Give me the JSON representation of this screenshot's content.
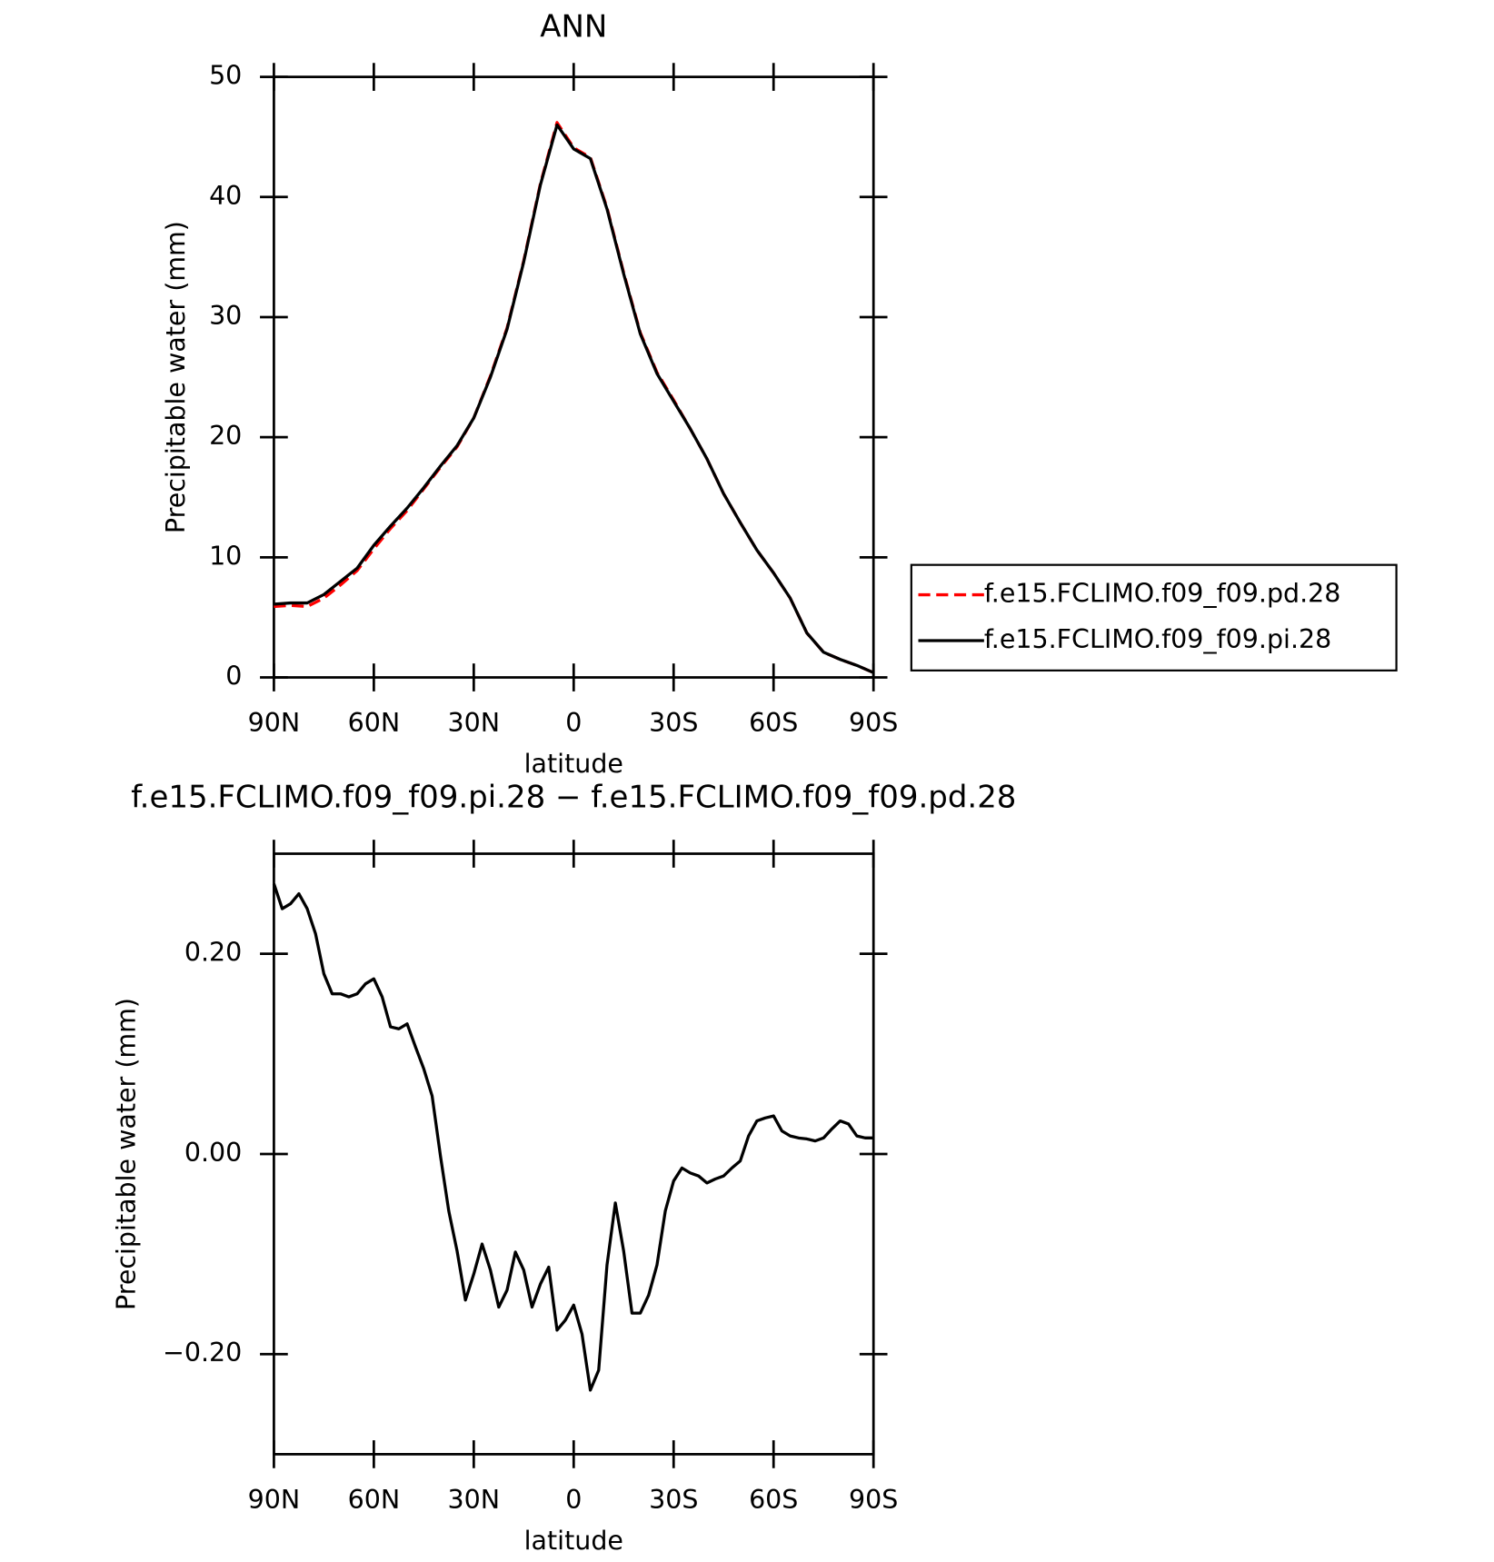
{
  "chart_data": [
    {
      "type": "line",
      "title": "ANN",
      "xlabel": "latitude",
      "ylabel": "Precipitable water (mm)",
      "x": [
        90,
        85,
        80,
        75,
        70,
        65,
        60,
        55,
        50,
        45,
        40,
        35,
        30,
        25,
        20,
        15,
        10,
        5,
        0,
        -5,
        -10,
        -15,
        -20,
        -25,
        -30,
        -35,
        -40,
        -45,
        -50,
        -55,
        -60,
        -65,
        -70,
        -75,
        -80,
        -85,
        -90
      ],
      "series": [
        {
          "name": "f.e15.FCLIMO.f09_f09.pd.28",
          "color": "#ff0000",
          "dashed": true,
          "values": [
            5.9,
            6.0,
            5.9,
            6.6,
            7.7,
            8.9,
            10.7,
            12.4,
            13.9,
            15.7,
            17.5,
            19.2,
            21.6,
            25.1,
            29.1,
            34.7,
            41.1,
            46.2,
            44.1,
            43.3,
            39.1,
            33.7,
            28.7,
            25.4,
            23.1,
            20.7,
            18.2,
            15.3,
            12.9,
            10.6,
            8.7,
            6.6,
            3.7,
            2.1,
            1.5,
            1.0,
            0.4
          ]
        },
        {
          "name": "f.e15.FCLIMO.f09_f09.pi.28",
          "color": "#000000",
          "dashed": false,
          "values": [
            6.1,
            6.2,
            6.2,
            6.9,
            8.0,
            9.1,
            11.0,
            12.6,
            14.1,
            15.8,
            17.6,
            19.3,
            21.6,
            25.0,
            29.0,
            34.6,
            41.0,
            46.0,
            44.0,
            43.2,
            39.0,
            33.6,
            28.6,
            25.3,
            23.0,
            20.7,
            18.2,
            15.3,
            12.9,
            10.6,
            8.7,
            6.6,
            3.7,
            2.1,
            1.5,
            1.0,
            0.4
          ]
        }
      ],
      "xlim": [
        90,
        -90
      ],
      "xticks": [
        {
          "value": 90,
          "label": "90N"
        },
        {
          "value": 60,
          "label": "60N"
        },
        {
          "value": 30,
          "label": "30N"
        },
        0,
        {
          "value": -30,
          "label": "30S"
        },
        {
          "value": -60,
          "label": "60S"
        },
        {
          "value": -90,
          "label": "90S"
        }
      ],
      "ylim": [
        0,
        50
      ],
      "yticks": [
        0,
        10,
        20,
        30,
        40,
        50
      ],
      "legend": "right"
    },
    {
      "type": "line",
      "title": "f.e15.FCLIMO.f09_f09.pi.28 − f.e15.FCLIMO.f09_f09.pd.28",
      "xlabel": "latitude",
      "ylabel": "Precipitable water (mm)",
      "x": [
        90,
        87.5,
        85,
        82.5,
        80,
        77.5,
        75,
        72.5,
        70,
        67.5,
        65,
        62.5,
        60,
        57.5,
        55,
        52.5,
        50,
        47.5,
        45,
        42.5,
        40,
        37.5,
        35,
        32.5,
        30,
        27.5,
        25,
        22.5,
        20,
        17.5,
        15,
        12.5,
        10,
        7.5,
        5,
        2.5,
        0,
        -2.5,
        -5,
        -7.5,
        -10,
        -12.5,
        -15,
        -17.5,
        -20,
        -22.5,
        -25,
        -27.5,
        -30,
        -32.5,
        -35,
        -37.5,
        -40,
        -42.5,
        -45,
        -47.5,
        -50,
        -52.5,
        -55,
        -57.5,
        -60,
        -62.5,
        -65,
        -67.5,
        -70,
        -72.5,
        -75,
        -77.5,
        -80,
        -82.5,
        -85,
        -87.5,
        -90
      ],
      "series": [
        {
          "color": "#000000",
          "dashed": false,
          "values": [
            0.27,
            0.245,
            0.25,
            0.26,
            0.245,
            0.22,
            0.18,
            0.16,
            0.16,
            0.157,
            0.16,
            0.17,
            0.175,
            0.157,
            0.127,
            0.125,
            0.13,
            0.107,
            0.085,
            0.058,
            -0.002,
            -0.057,
            -0.097,
            -0.146,
            -0.12,
            -0.09,
            -0.116,
            -0.153,
            -0.136,
            -0.098,
            -0.116,
            -0.153,
            -0.13,
            -0.113,
            -0.176,
            -0.166,
            -0.151,
            -0.18,
            -0.236,
            -0.216,
            -0.111,
            -0.049,
            -0.097,
            -0.159,
            -0.159,
            -0.141,
            -0.111,
            -0.057,
            -0.027,
            -0.014,
            -0.019,
            -0.022,
            -0.029,
            -0.025,
            -0.022,
            -0.014,
            -0.007,
            0.018,
            0.033,
            0.036,
            0.038,
            0.023,
            0.018,
            0.016,
            0.015,
            0.013,
            0.016,
            0.025,
            0.033,
            0.03,
            0.018,
            0.016,
            0.016
          ]
        }
      ],
      "xlim": [
        90,
        -90
      ],
      "xticks": [
        {
          "value": 90,
          "label": "90N"
        },
        {
          "value": 60,
          "label": "60N"
        },
        {
          "value": 30,
          "label": "30N"
        },
        0,
        {
          "value": -30,
          "label": "30S"
        },
        {
          "value": -60,
          "label": "60S"
        },
        {
          "value": -90,
          "label": "90S"
        }
      ],
      "ylim": [
        -0.3,
        0.3
      ],
      "yticks": [
        {
          "value": -0.2,
          "label": "−0.20"
        },
        {
          "value": 0,
          "label": "0.00"
        },
        {
          "value": 0.2,
          "label": "0.20"
        }
      ]
    }
  ]
}
